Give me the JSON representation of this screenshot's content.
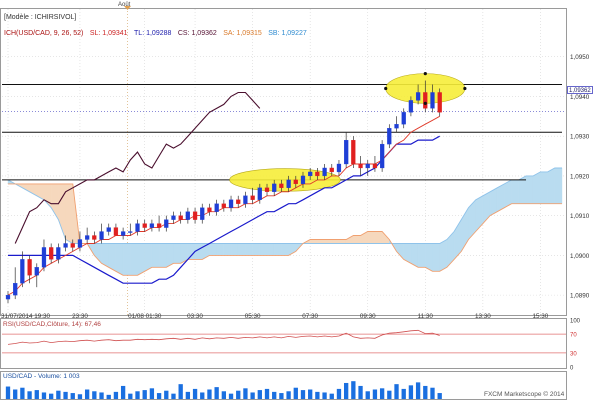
{
  "header": {
    "model": "[Modèle : ICHIRSIVOL]",
    "legend": [
      {
        "text": "ICH(USD/CAD, 9, 26, 52)",
        "color": "#aa1111"
      },
      {
        "text": "SL: 1,09341",
        "color": "#cc2222"
      },
      {
        "text": "TL: 1,09288",
        "color": "#1a1aaa"
      },
      {
        "text": "CS: 1,09362",
        "color": "#551133"
      },
      {
        "text": "SA: 1,09315",
        "color": "#d97a2a"
      },
      {
        "text": "SB: 1,09227",
        "color": "#2e8bd0"
      }
    ]
  },
  "top_marker_label": "Août",
  "current_price": "1,09362",
  "rsi_label": "RSI(USD/CAD,Clôture, 14): 67,46",
  "volume_label": "USD/CAD - Volume: 1 003",
  "watermark": "FXCM Marketscope © 2014",
  "colors": {
    "up": "#1f3fd6",
    "down": "#e02020",
    "tenkan": "#e03a2a",
    "kijun": "#1a1acc",
    "chikou": "#4a0f2e",
    "span_a": "#8fc3ea",
    "span_b": "#f0a070",
    "cloud_bull": "#b9dcf0",
    "cloud_bear": "#f6d8bd",
    "highlight": "#f7ee3a",
    "hline": "#111111",
    "price_line": "#6666cc",
    "rsi_line": "#d05050",
    "volume_bar": "#1a6fe0"
  },
  "chart_data": [
    {
      "type": "candlestick",
      "title": "USD/CAD",
      "ylim": [
        1.0885,
        1.0962
      ],
      "y_ticks": [
        {
          "value": 1.089,
          "label": "1,0890"
        },
        {
          "value": 1.09,
          "label": "1,0900"
        },
        {
          "value": 1.091,
          "label": "1,0910"
        },
        {
          "value": 1.092,
          "label": "1,0920"
        },
        {
          "value": 1.093,
          "label": "1,0930"
        },
        {
          "value": 1.094,
          "label": "1,0940"
        },
        {
          "value": 1.095,
          "label": "1,0950"
        }
      ],
      "x_ticks": [
        {
          "i": 0,
          "label": "31/07/2014 19:30"
        },
        {
          "i": 10,
          "label": "23:30"
        },
        {
          "i": 19,
          "label": "01/08 01:30"
        },
        {
          "i": 26,
          "label": "03:30"
        },
        {
          "i": 34,
          "label": "05:30"
        },
        {
          "i": 42,
          "label": "07:30"
        },
        {
          "i": 50,
          "label": "09:30"
        },
        {
          "i": 58,
          "label": "11:30"
        },
        {
          "i": 66,
          "label": "13:30"
        },
        {
          "i": 74,
          "label": "15:30"
        }
      ],
      "x_count": 78,
      "candles": [
        [
          1.0889,
          1.0891,
          1.0888,
          1.089
        ],
        [
          1.089,
          1.0897,
          1.0889,
          1.0893
        ],
        [
          1.0893,
          1.0901,
          1.0892,
          1.0899
        ],
        [
          1.0899,
          1.09,
          1.0893,
          1.0895
        ],
        [
          1.0895,
          1.0898,
          1.0892,
          1.0897
        ],
        [
          1.0897,
          1.0904,
          1.0896,
          1.0902
        ],
        [
          1.0902,
          1.0903,
          1.0898,
          1.0899
        ],
        [
          1.0899,
          1.0903,
          1.0898,
          1.0902
        ],
        [
          1.0902,
          1.0905,
          1.0901,
          1.0903
        ],
        [
          1.0903,
          1.0904,
          1.0901,
          1.0902
        ],
        [
          1.0902,
          1.0906,
          1.0901,
          1.0904
        ],
        [
          1.0904,
          1.0907,
          1.0903,
          1.0905
        ],
        [
          1.0905,
          1.0906,
          1.0903,
          1.0904
        ],
        [
          1.0904,
          1.0908,
          1.0903,
          1.0906
        ],
        [
          1.0906,
          1.0908,
          1.0905,
          1.0907
        ],
        [
          1.0907,
          1.0908,
          1.0905,
          1.0905
        ],
        [
          1.0905,
          1.0907,
          1.0904,
          1.0906
        ],
        [
          1.0906,
          1.0908,
          1.0905,
          1.0906
        ],
        [
          1.0906,
          1.0909,
          1.0905,
          1.0908
        ],
        [
          1.0908,
          1.0909,
          1.0906,
          1.0907
        ],
        [
          1.0907,
          1.0909,
          1.0906,
          1.0908
        ],
        [
          1.0908,
          1.091,
          1.0906,
          1.0907
        ],
        [
          1.0907,
          1.091,
          1.0906,
          1.0909
        ],
        [
          1.0909,
          1.0911,
          1.0908,
          1.091
        ],
        [
          1.091,
          1.0911,
          1.0908,
          1.0909
        ],
        [
          1.0909,
          1.0912,
          1.0908,
          1.0911
        ],
        [
          1.0911,
          1.0912,
          1.0908,
          1.0909
        ],
        [
          1.0909,
          1.0913,
          1.0908,
          1.0912
        ],
        [
          1.0912,
          1.0913,
          1.091,
          1.0911
        ],
        [
          1.0911,
          1.0914,
          1.091,
          1.0913
        ],
        [
          1.0913,
          1.0914,
          1.0911,
          1.0912
        ],
        [
          1.0912,
          1.0915,
          1.0911,
          1.0914
        ],
        [
          1.0914,
          1.0915,
          1.0912,
          1.0913
        ],
        [
          1.0913,
          1.0916,
          1.0912,
          1.0915
        ],
        [
          1.0915,
          1.0917,
          1.0913,
          1.0914
        ],
        [
          1.0914,
          1.0918,
          1.0913,
          1.0917
        ],
        [
          1.0917,
          1.0918,
          1.0915,
          1.0916
        ],
        [
          1.0916,
          1.0919,
          1.0915,
          1.0918
        ],
        [
          1.0918,
          1.0919,
          1.0916,
          1.0917
        ],
        [
          1.0917,
          1.092,
          1.0916,
          1.0919
        ],
        [
          1.0919,
          1.092,
          1.0917,
          1.0918
        ],
        [
          1.0918,
          1.0921,
          1.0917,
          1.092
        ],
        [
          1.092,
          1.0922,
          1.0919,
          1.0921
        ],
        [
          1.0921,
          1.0922,
          1.0919,
          1.092
        ],
        [
          1.092,
          1.0923,
          1.0919,
          1.0922
        ],
        [
          1.0922,
          1.0923,
          1.092,
          1.0921
        ],
        [
          1.0921,
          1.0924,
          1.092,
          1.0923
        ],
        [
          1.0923,
          1.0931,
          1.0922,
          1.0929
        ],
        [
          1.0929,
          1.093,
          1.0922,
          1.0923
        ],
        [
          1.0923,
          1.0925,
          1.092,
          1.0922
        ],
        [
          1.0922,
          1.0924,
          1.092,
          1.0923
        ],
        [
          1.0923,
          1.0925,
          1.0921,
          1.0922
        ],
        [
          1.0922,
          1.0929,
          1.0921,
          1.0928
        ],
        [
          1.0928,
          1.0933,
          1.0927,
          1.0932
        ],
        [
          1.0932,
          1.0935,
          1.0931,
          1.0933
        ],
        [
          1.0933,
          1.0937,
          1.0932,
          1.0936
        ],
        [
          1.0936,
          1.094,
          1.0935,
          1.0939
        ],
        [
          1.0939,
          1.0943,
          1.0938,
          1.0941
        ],
        [
          1.0941,
          1.0944,
          1.0936,
          1.0937
        ],
        [
          1.0937,
          1.0943,
          1.0936,
          1.0941
        ],
        [
          1.0941,
          1.0942,
          1.0935,
          1.0936
        ]
      ],
      "tenkan": [
        1.089,
        1.0891,
        1.0893,
        1.0894,
        1.0895,
        1.0897,
        1.0898,
        1.0899,
        1.09,
        1.0901,
        1.0902,
        1.0903,
        1.0903,
        1.0904,
        1.0904,
        1.0905,
        1.0905,
        1.0905,
        1.0906,
        1.0906,
        1.0907,
        1.0907,
        1.0908,
        1.0908,
        1.0909,
        1.0909,
        1.091,
        1.091,
        1.0911,
        1.0911,
        1.0912,
        1.0912,
        1.0912,
        1.0913,
        1.0913,
        1.0914,
        1.0915,
        1.0915,
        1.0916,
        1.0916,
        1.0917,
        1.0918,
        1.0918,
        1.0919,
        1.0919,
        1.092,
        1.092,
        1.0922,
        1.0923,
        1.0923,
        1.0923,
        1.0923,
        1.0924,
        1.0926,
        1.0928,
        1.0929,
        1.0931,
        1.0932,
        1.0933,
        1.0934,
        1.0935
      ],
      "kijun": [
        1.09,
        1.09,
        1.09,
        1.09,
        1.09,
        1.09,
        1.09,
        1.09,
        1.09,
        1.09,
        1.0899,
        1.0898,
        1.0897,
        1.0896,
        1.0895,
        1.0894,
        1.0893,
        1.0893,
        1.0893,
        1.0893,
        1.0893,
        1.0894,
        1.0894,
        1.0895,
        1.0897,
        1.0899,
        1.0901,
        1.0902,
        1.0903,
        1.0904,
        1.0905,
        1.0906,
        1.0907,
        1.0908,
        1.0909,
        1.091,
        1.0911,
        1.0911,
        1.0912,
        1.0913,
        1.0913,
        1.0914,
        1.0915,
        1.0916,
        1.0917,
        1.0917,
        1.0918,
        1.0919,
        1.092,
        1.092,
        1.0921,
        1.0922,
        1.0924,
        1.0926,
        1.0928,
        1.0928,
        1.0928,
        1.0929,
        1.0929,
        1.0929,
        1.093
      ],
      "chikou": [
        null,
        1.0903,
        1.0907,
        1.0911,
        1.0912,
        1.0914,
        1.0913,
        1.0913,
        1.0916,
        1.0917,
        1.0918,
        1.0919,
        1.0919,
        1.092,
        1.0921,
        1.0922,
        1.0921,
        1.0924,
        1.0926,
        1.0923,
        1.0922,
        1.0925,
        1.0928,
        1.0927,
        1.0928,
        1.093,
        1.0932,
        1.0934,
        1.0936,
        1.0937,
        1.0938,
        1.094,
        1.0941,
        1.0941,
        1.0939,
        1.0937
      ],
      "span_a": [
        1.0919,
        1.0918,
        1.0917,
        1.0916,
        1.0915,
        1.0914,
        1.0912,
        1.0909,
        1.0904,
        1.0903,
        1.0903,
        1.0903,
        1.0903,
        1.0903,
        1.0903,
        1.0903,
        1.0903,
        1.0903,
        1.0903,
        1.0903,
        1.0903,
        1.0903,
        1.0903,
        1.0903,
        1.0903,
        1.0903,
        1.0903,
        1.0903,
        1.0903,
        1.0903,
        1.0903,
        1.0903,
        1.0903,
        1.0903,
        1.0903,
        1.0903,
        1.0903,
        1.0903,
        1.0903,
        1.0903,
        1.0903,
        1.0903,
        1.0903,
        1.0903,
        1.0903,
        1.0903,
        1.0903,
        1.0903,
        1.0903,
        1.0903,
        1.0903,
        1.0903,
        1.0903,
        1.0903,
        1.0903,
        1.0903,
        1.0903,
        1.0903,
        1.0903,
        1.0903,
        1.0903,
        1.0904,
        1.0906,
        1.0909,
        1.0912,
        1.0914,
        1.0915,
        1.0916,
        1.0917,
        1.0918,
        1.0919,
        1.0919,
        1.092,
        1.092,
        1.0921,
        1.0921,
        1.0922,
        1.0922
      ],
      "span_b": [
        1.0918,
        1.0918,
        1.0918,
        1.0918,
        1.0918,
        1.0918,
        1.0918,
        1.0918,
        1.0918,
        1.0918,
        1.0903,
        1.0903,
        1.09,
        1.0898,
        1.0897,
        1.0896,
        1.0895,
        1.0895,
        1.0895,
        1.0896,
        1.0897,
        1.0897,
        1.0897,
        1.0898,
        1.0898,
        1.0899,
        1.0899,
        1.0899,
        1.09,
        1.09,
        1.09,
        1.09,
        1.09,
        1.09,
        1.09,
        1.09,
        1.09,
        1.09,
        1.09,
        1.09,
        1.0901,
        1.0903,
        1.0904,
        1.0904,
        1.0904,
        1.0904,
        1.0904,
        1.0904,
        1.0905,
        1.0905,
        1.0906,
        1.0906,
        1.0906,
        1.0904,
        1.0901,
        1.0899,
        1.0898,
        1.0897,
        1.0897,
        1.0896,
        1.0896,
        1.0897,
        1.0899,
        1.0901,
        1.0904,
        1.0906,
        1.0908,
        1.091,
        1.0911,
        1.0912,
        1.0913,
        1.0913,
        1.0913,
        1.0913,
        1.0913,
        1.0913,
        1.0913,
        1.0913
      ],
      "horizontal_lines": [
        {
          "value": 1.0943,
          "i_from": 0,
          "i_to": 77
        },
        {
          "value": 1.0931,
          "i_from": 0,
          "i_to": 77
        },
        {
          "value": 1.0919,
          "i_from": 0,
          "i_to": 72
        }
      ],
      "current_price_line": 1.09362,
      "highlights": [
        {
          "i_center": 38.5,
          "value": 1.0919,
          "i_radius": 3.5,
          "v_radius": 0.00013
        },
        {
          "i_center": 58,
          "value": 1.0942,
          "i_radius": 2.5,
          "v_radius": 0.00017
        }
      ]
    },
    {
      "type": "line",
      "title": "RSI(USD/CAD,Clôture, 14): 67,46",
      "ylim": [
        0,
        100
      ],
      "y_ticks": [
        0,
        30,
        70,
        100
      ],
      "levels": [
        30,
        70
      ],
      "values": [
        48,
        50,
        53,
        51,
        52,
        55,
        52,
        54,
        55,
        54,
        56,
        57,
        55,
        57,
        58,
        56,
        57,
        57,
        59,
        58,
        59,
        58,
        60,
        61,
        59,
        61,
        59,
        62,
        60,
        62,
        61,
        63,
        61,
        63,
        62,
        64,
        62,
        64,
        62,
        65,
        63,
        65,
        66,
        64,
        66,
        64,
        66,
        72,
        64,
        61,
        62,
        61,
        68,
        72,
        73,
        75,
        77,
        78,
        71,
        72,
        67
      ]
    },
    {
      "type": "bar",
      "title": "USD/CAD - Volume: 1 003",
      "ylim": [
        0,
        3200
      ],
      "values": [
        2100,
        1600,
        1900,
        1300,
        1500,
        1100,
        900,
        1400,
        1200,
        1000,
        800,
        1600,
        1300,
        1100,
        700,
        1200,
        2200,
        900,
        1300,
        1500,
        1800,
        1000,
        1400,
        900,
        2500,
        1200,
        1700,
        1100,
        1600,
        2000,
        1300,
        900,
        1400,
        1800,
        1100,
        1500,
        1700,
        1200,
        1000,
        1300,
        1900,
        1500,
        1600,
        1200,
        1100,
        900,
        1700,
        2700,
        3000,
        2200,
        1300,
        1600,
        1800,
        1400,
        2500,
        1700,
        2300,
        2800,
        2200,
        1900,
        1003
      ]
    }
  ]
}
